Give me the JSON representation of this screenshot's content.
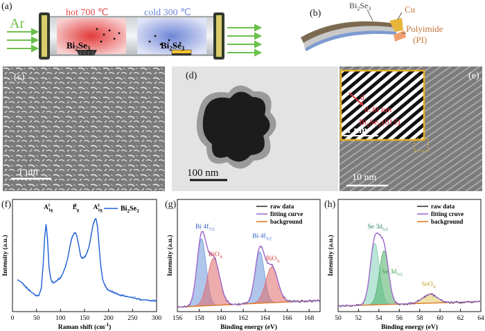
{
  "panel_labels": {
    "a": "(a)",
    "b": "(b)",
    "c": "(c)",
    "d": "(d)",
    "e": "(e)",
    "f": "(f)",
    "g": "(g)",
    "h": "(h)"
  },
  "panel_a": {
    "gas": "Ar",
    "hot_label": "hot 700 ℃",
    "cold_label": "cold 300 ℃",
    "source_material": "Bi",
    "source_sub": "2",
    "source_material2": "Se",
    "source_sub2": "3",
    "colors": {
      "hot": "#e84a4a",
      "cold": "#6f86d6",
      "gas": "#6ac04a"
    }
  },
  "panel_b": {
    "film": "Bi",
    "film_sub": "2",
    "film2": "Se",
    "film_sub2": "3",
    "electrode": "Cu",
    "substrate": "Polyimide",
    "substrate_abbr": "(PI)",
    "colors": {
      "label": "#c8743a"
    }
  },
  "panel_c": {
    "scale_bar": "1 μm"
  },
  "panel_d": {
    "scale_bar": "100 nm"
  },
  "panel_e": {
    "scale_bar": "10 nm",
    "inset_scale": "1 nm",
    "d_label": "d",
    "d_spacing": "0.30 nm",
    "plane_material": "Bi",
    "plane_sub": "2",
    "plane_material2": "Se",
    "plane_sub2": "3",
    "plane_index": "(015)"
  },
  "chart_data": [
    {
      "id": "f",
      "type": "line",
      "xlabel": "Raman shift (cm",
      "xlabel_sup": "-1",
      "xlabel_end": ")",
      "ylabel": "Intensity (a.u.)",
      "xlim": [
        0,
        300
      ],
      "xticks": [
        0,
        50,
        100,
        150,
        200,
        250,
        300
      ],
      "legend": "Bi",
      "legend_sub": "2",
      "legend2": "Se",
      "legend_sub2": "3",
      "peaks": [
        {
          "x": 71,
          "label": "A",
          "sub": "1g",
          "sup": "1"
        },
        {
          "x": 131,
          "label": "E",
          "sub": "g",
          "sup": "2"
        },
        {
          "x": 174,
          "label": "A",
          "sub": "1g",
          "sup": "2"
        }
      ],
      "series": [
        {
          "name": "Bi2Se3",
          "color": "#1f5fd6",
          "x": [
            10,
            20,
            30,
            40,
            50,
            55,
            60,
            64,
            67,
            70,
            73,
            76,
            80,
            85,
            90,
            95,
            100,
            105,
            110,
            115,
            120,
            124,
            128,
            131,
            134,
            138,
            142,
            146,
            150,
            155,
            160,
            164,
            168,
            171,
            174,
            177,
            180,
            184,
            188,
            192,
            196,
            200,
            210,
            220,
            230,
            240,
            250,
            260,
            270,
            280,
            290,
            300
          ],
          "values": [
            0.3,
            0.27,
            0.22,
            0.18,
            0.15,
            0.15,
            0.22,
            0.45,
            0.7,
            0.82,
            0.68,
            0.42,
            0.3,
            0.27,
            0.28,
            0.3,
            0.32,
            0.36,
            0.42,
            0.5,
            0.62,
            0.7,
            0.73,
            0.74,
            0.71,
            0.62,
            0.52,
            0.5,
            0.51,
            0.55,
            0.62,
            0.72,
            0.82,
            0.86,
            0.87,
            0.8,
            0.63,
            0.42,
            0.3,
            0.25,
            0.22,
            0.2,
            0.18,
            0.16,
            0.15,
            0.14,
            0.13,
            0.12,
            0.11,
            0.11,
            0.1,
            0.1
          ]
        }
      ]
    },
    {
      "id": "g",
      "type": "line",
      "xlabel": "Binding energy (eV)",
      "ylabel": "Intensity (a.u.)",
      "xlim": [
        156,
        169
      ],
      "xticks": [
        156,
        158,
        160,
        162,
        164,
        166,
        168
      ],
      "legend": [
        "raw data",
        "fitting curve",
        "background"
      ],
      "peak_labels": [
        {
          "text": "Bi 4f",
          "sub": "7/2",
          "x": 158.4,
          "color": "#2b5fc9"
        },
        {
          "text": "BiO",
          "sub": "X",
          "x": 159.6,
          "color": "#d43c3c"
        },
        {
          "text": "Bi 4f",
          "sub": "5/2",
          "x": 163.6,
          "color": "#2b5fc9"
        },
        {
          "text": "BiO",
          "sub": "X",
          "x": 164.8,
          "color": "#d43c3c"
        }
      ],
      "components": [
        {
          "name": "Bi 4f7/2",
          "center": 158.2,
          "height": 0.6,
          "width": 0.42,
          "color": "#6e97d8"
        },
        {
          "name": "BiOx",
          "center": 159.3,
          "height": 0.42,
          "width": 0.55,
          "color": "#e06a6a"
        },
        {
          "name": "Bi 4f5/2",
          "center": 163.5,
          "height": 0.46,
          "width": 0.42,
          "color": "#6e97d8"
        },
        {
          "name": "BiOx",
          "center": 164.6,
          "height": 0.32,
          "width": 0.55,
          "color": "#e06a6a"
        }
      ],
      "background": {
        "start": 0.04,
        "end": 0.1
      },
      "colors": {
        "raw": "#333333",
        "fit": "#a46bd1",
        "bg": "#e07a2a"
      }
    },
    {
      "id": "h",
      "type": "line",
      "xlabel": "Binding energy (eV)",
      "ylabel": "Intensity (a.u.)",
      "xlim": [
        50,
        64
      ],
      "xticks": [
        50,
        52,
        54,
        56,
        58,
        60,
        62,
        64
      ],
      "legend": [
        "raw data",
        "fitting cruve",
        "background"
      ],
      "peak_labels": [
        {
          "text": "Se 3d",
          "sub": "5/2",
          "x": 53.7,
          "color": "#2a7f6a"
        },
        {
          "text": "Se 3d",
          "sub": "3/2",
          "x": 55.1,
          "color": "#3f9a52"
        },
        {
          "text": "SeO",
          "sub": "X",
          "x": 59.0,
          "color": "#c8a028"
        }
      ],
      "components": [
        {
          "name": "Se 3d5/2",
          "center": 53.6,
          "height": 0.55,
          "width": 0.45,
          "color": "#7fd1b4"
        },
        {
          "name": "Se 3d3/2",
          "center": 54.5,
          "height": 0.48,
          "width": 0.45,
          "color": "#4fae68"
        },
        {
          "name": "SeOx",
          "center": 59.0,
          "height": 0.08,
          "width": 0.7,
          "color": "#e0c860"
        }
      ],
      "background": {
        "start": 0.05,
        "end": 0.09
      },
      "colors": {
        "raw": "#333333",
        "fit": "#a46bd1",
        "bg": "#e07a2a"
      }
    }
  ]
}
